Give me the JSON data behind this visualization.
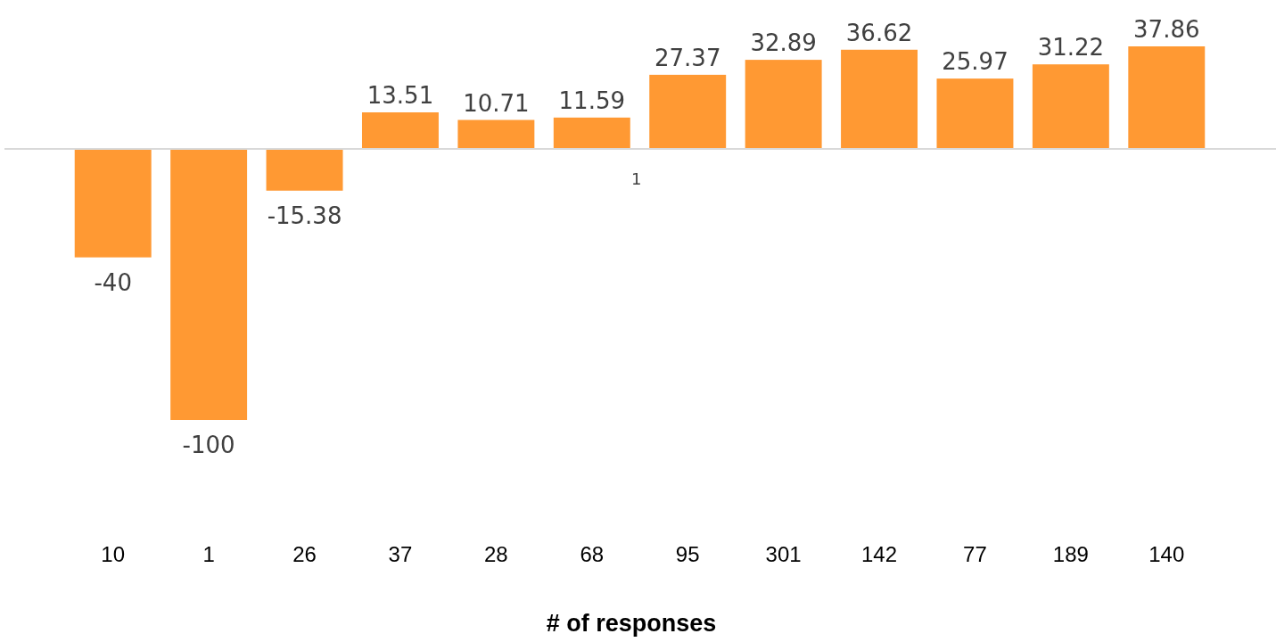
{
  "chart_data": {
    "type": "bar",
    "xlabel": "# of responses",
    "categories": [
      "10",
      "1",
      "26",
      "37",
      "28",
      "68",
      "95",
      "301",
      "142",
      "77",
      "189",
      "140"
    ],
    "values": [
      -40,
      -100,
      -15.38,
      13.51,
      10.71,
      11.59,
      27.37,
      32.89,
      36.62,
      25.97,
      31.22,
      37.86
    ],
    "color": "#ff9933",
    "data_labels": true,
    "annotations": [
      "1"
    ]
  }
}
